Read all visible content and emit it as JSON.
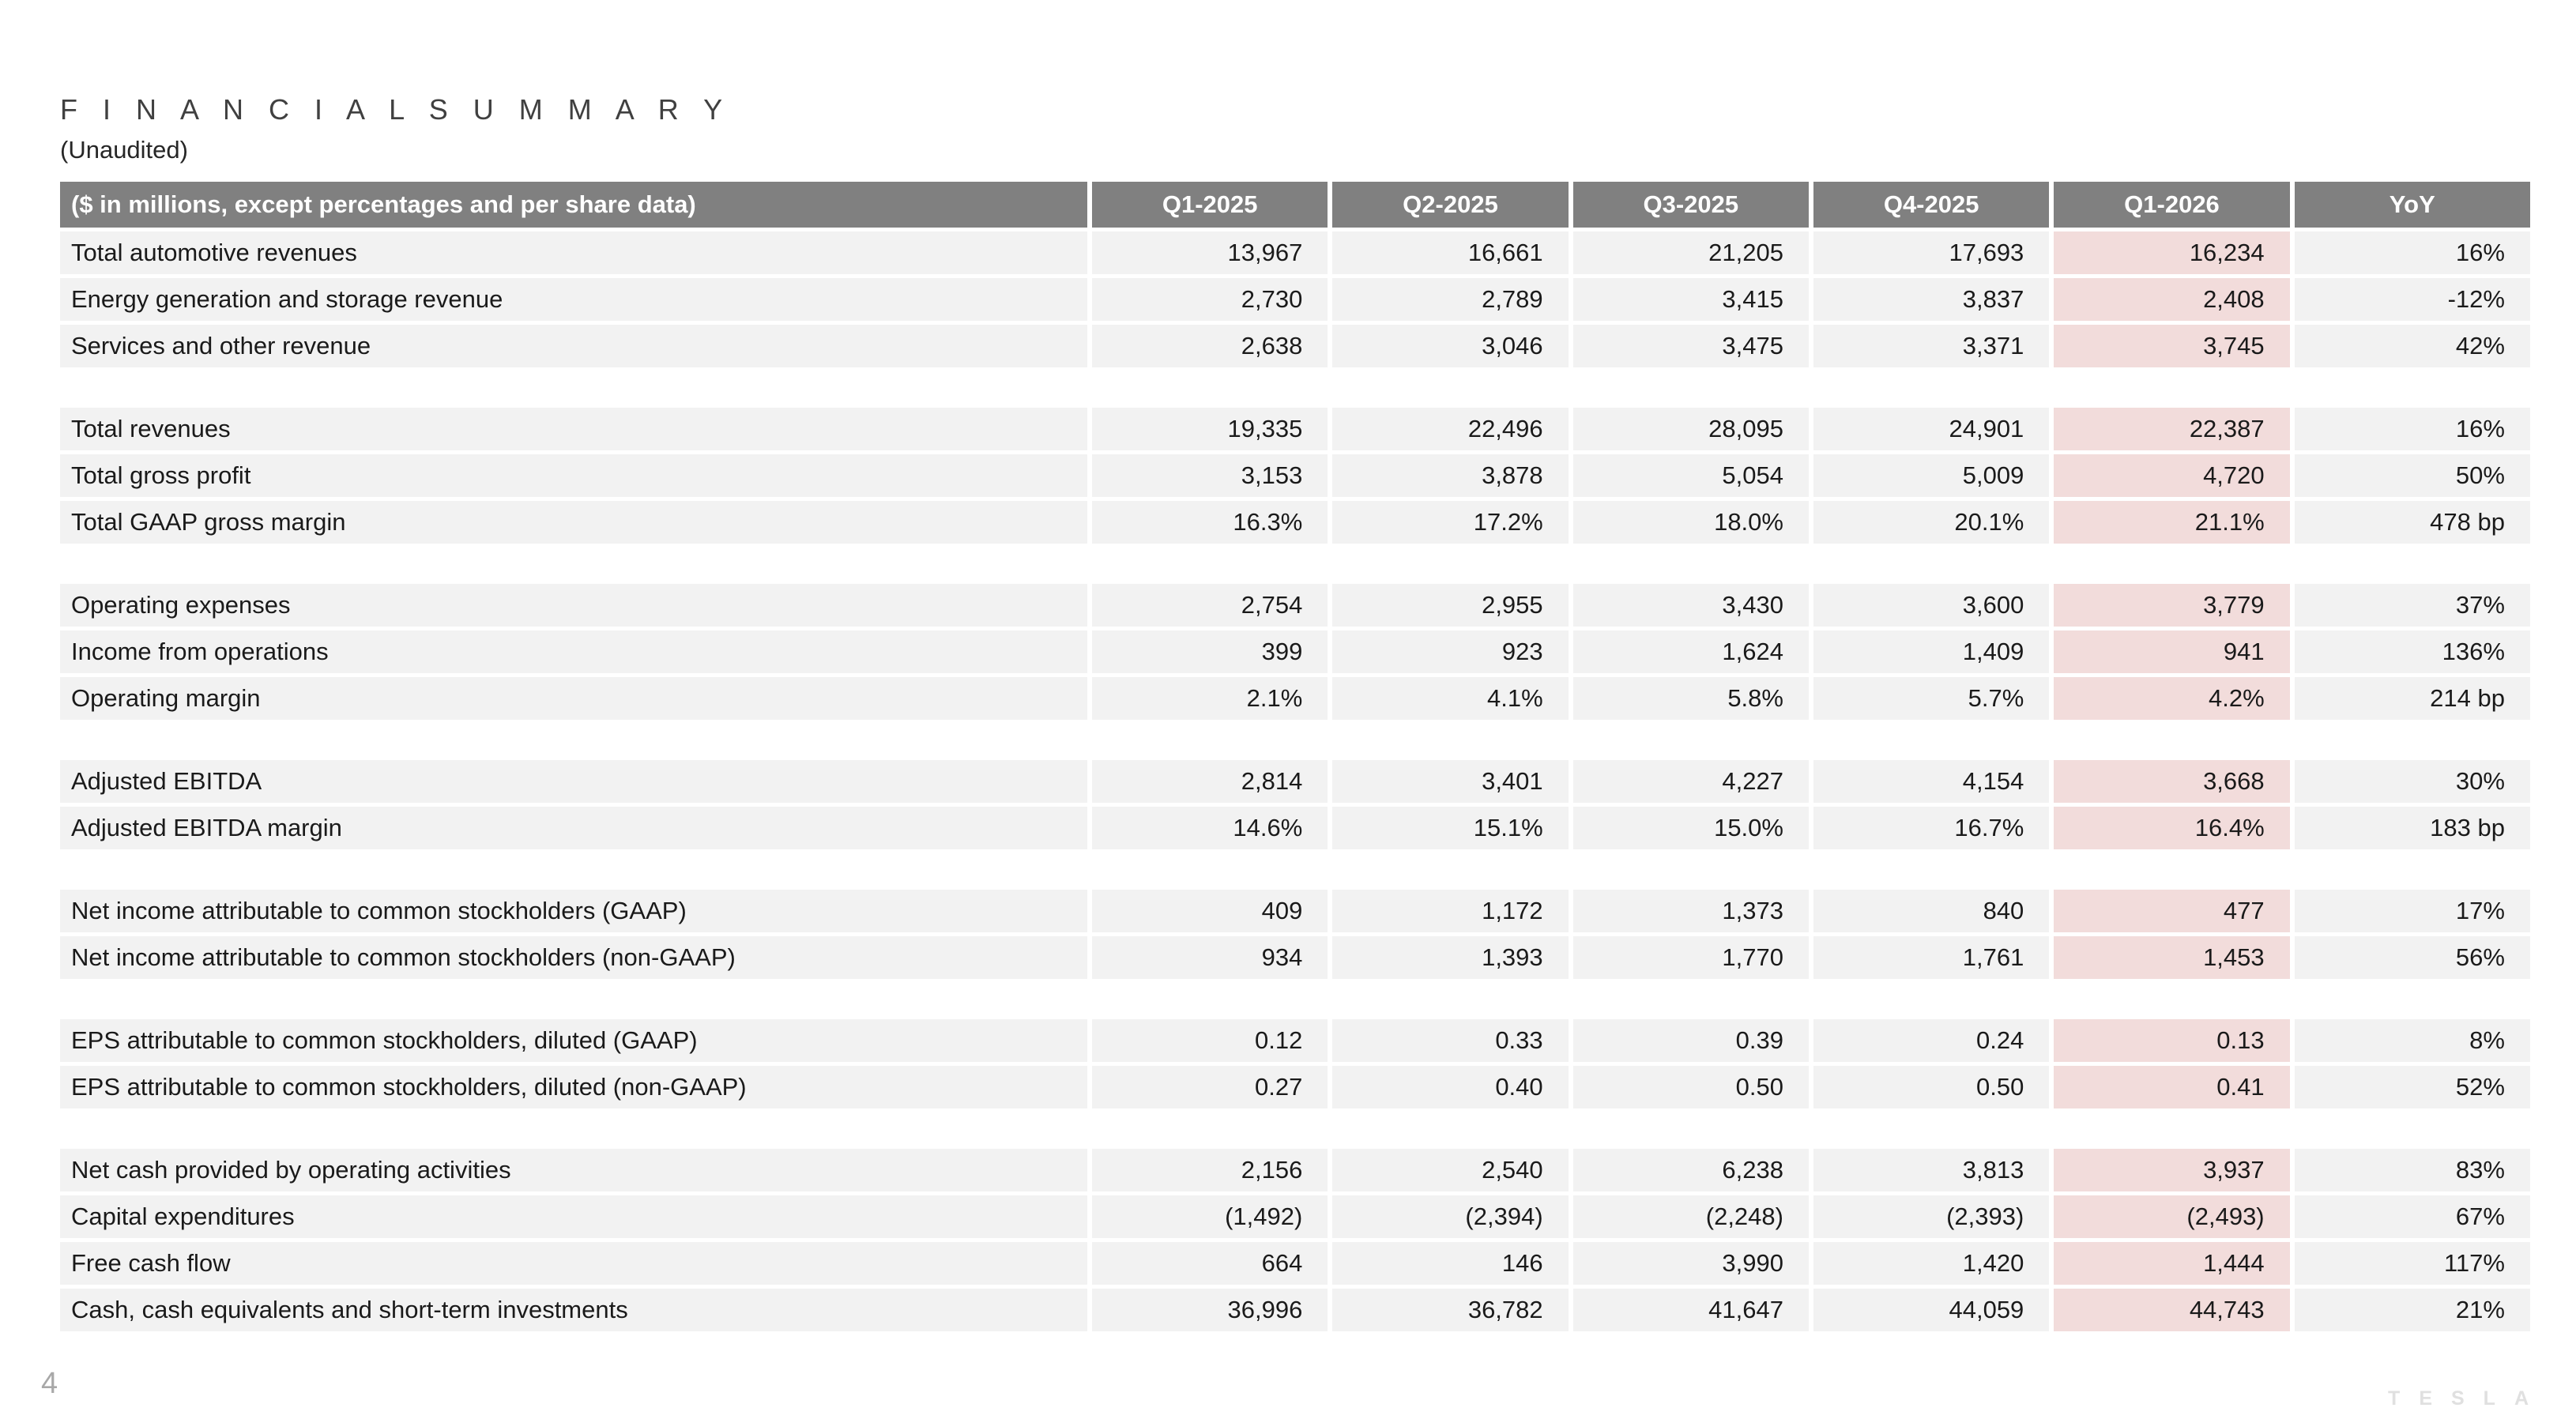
{
  "page": {
    "title": "F I N A N C I A L   S U M M A R Y",
    "subtitle": "(Unaudited)",
    "page_number": "4",
    "brand_logo_text": "TESLA"
  },
  "colors": {
    "header_bg": "#808080",
    "row_bg": "#f2f2f2",
    "highlight_bg": "#f2dcdb",
    "title_text": "#404040",
    "page_number_text": "#a8a8a8",
    "logo_text": "#e0e0e0"
  },
  "table": {
    "header": {
      "label": "($ in millions, except percentages and per share data)",
      "columns": [
        "Q1-2025",
        "Q2-2025",
        "Q3-2025",
        "Q4-2025",
        "Q1-2026",
        "YoY"
      ]
    },
    "highlight_column_index": 4,
    "groups": [
      {
        "rows": [
          {
            "label": "Total automotive revenues",
            "values": [
              "13,967",
              "16,661",
              "21,205",
              "17,693",
              "16,234",
              "16%"
            ]
          },
          {
            "label": "Energy generation and storage revenue",
            "values": [
              "2,730",
              "2,789",
              "3,415",
              "3,837",
              "2,408",
              "-12%"
            ]
          },
          {
            "label": "Services and other revenue",
            "values": [
              "2,638",
              "3,046",
              "3,475",
              "3,371",
              "3,745",
              "42%"
            ]
          }
        ]
      },
      {
        "rows": [
          {
            "label": "Total revenues",
            "values": [
              "19,335",
              "22,496",
              "28,095",
              "24,901",
              "22,387",
              "16%"
            ]
          },
          {
            "label": "Total gross profit",
            "values": [
              "3,153",
              "3,878",
              "5,054",
              "5,009",
              "4,720",
              "50%"
            ]
          },
          {
            "label": "Total GAAP gross margin",
            "values": [
              "16.3%",
              "17.2%",
              "18.0%",
              "20.1%",
              "21.1%",
              "478 bp"
            ]
          }
        ]
      },
      {
        "rows": [
          {
            "label": "Operating expenses",
            "values": [
              "2,754",
              "2,955",
              "3,430",
              "3,600",
              "3,779",
              "37%"
            ]
          },
          {
            "label": "Income from operations",
            "values": [
              "399",
              "923",
              "1,624",
              "1,409",
              "941",
              "136%"
            ]
          },
          {
            "label": "Operating margin",
            "values": [
              "2.1%",
              "4.1%",
              "5.8%",
              "5.7%",
              "4.2%",
              "214 bp"
            ]
          }
        ]
      },
      {
        "rows": [
          {
            "label": "Adjusted EBITDA",
            "values": [
              "2,814",
              "3,401",
              "4,227",
              "4,154",
              "3,668",
              "30%"
            ]
          },
          {
            "label": "Adjusted EBITDA margin",
            "values": [
              "14.6%",
              "15.1%",
              "15.0%",
              "16.7%",
              "16.4%",
              "183 bp"
            ]
          }
        ]
      },
      {
        "rows": [
          {
            "label": "Net income attributable to common stockholders (GAAP)",
            "values": [
              "409",
              "1,172",
              "1,373",
              "840",
              "477",
              "17%"
            ]
          },
          {
            "label": "Net income attributable to common stockholders (non-GAAP)",
            "values": [
              "934",
              "1,393",
              "1,770",
              "1,761",
              "1,453",
              "56%"
            ]
          }
        ]
      },
      {
        "rows": [
          {
            "label": "EPS attributable to common stockholders, diluted (GAAP)",
            "values": [
              "0.12",
              "0.33",
              "0.39",
              "0.24",
              "0.13",
              "8%"
            ]
          },
          {
            "label": "EPS attributable to common stockholders, diluted (non-GAAP)",
            "values": [
              "0.27",
              "0.40",
              "0.50",
              "0.50",
              "0.41",
              "52%"
            ]
          }
        ]
      },
      {
        "rows": [
          {
            "label": "Net cash provided by operating activities",
            "values": [
              "2,156",
              "2,540",
              "6,238",
              "3,813",
              "3,937",
              "83%"
            ]
          },
          {
            "label": "Capital expenditures",
            "values": [
              "(1,492)",
              "(2,394)",
              "(2,248)",
              "(2,393)",
              "(2,493)",
              "67%"
            ]
          },
          {
            "label": "Free cash flow",
            "values": [
              "664",
              "146",
              "3,990",
              "1,420",
              "1,444",
              "117%"
            ]
          },
          {
            "label": "Cash, cash equivalents and short-term investments",
            "values": [
              "36,996",
              "36,782",
              "41,647",
              "44,059",
              "44,743",
              "21%"
            ]
          }
        ]
      }
    ]
  }
}
